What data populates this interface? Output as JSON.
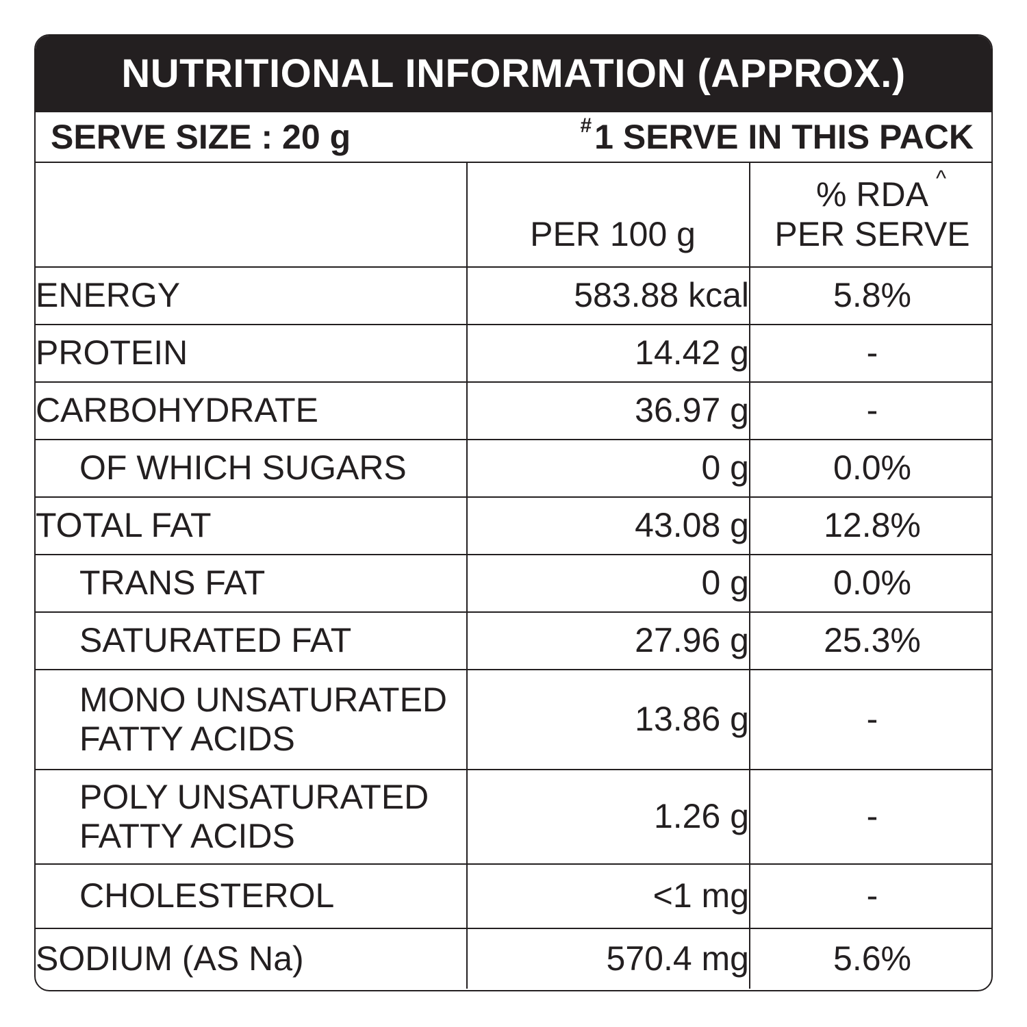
{
  "title": "NUTRITIONAL INFORMATION (APPROX.)",
  "serve": {
    "size_label": "SERVE SIZE : 20 g",
    "hash": "#",
    "count_label": "1 SERVE IN THIS PACK"
  },
  "columns": {
    "per100": "PER 100 g",
    "rda_line1": "% RDA",
    "rda_caret": "^",
    "rda_line2": "PER SERVE"
  },
  "rows": [
    {
      "name": "ENERGY",
      "value": "583.88 kcal",
      "rda": "5.8%"
    },
    {
      "name": "PROTEIN",
      "value": "14.42 g",
      "rda": "-"
    },
    {
      "name": "CARBOHYDRATE",
      "value": "36.97 g",
      "rda": "-"
    },
    {
      "name": "OF WHICH SUGARS",
      "value": "0 g",
      "rda": "0.0%"
    },
    {
      "name": "TOTAL FAT",
      "value": "43.08 g",
      "rda": "12.8%"
    },
    {
      "name": "TRANS FAT",
      "value": "0 g",
      "rda": "0.0%"
    },
    {
      "name": "SATURATED FAT",
      "value": "27.96 g",
      "rda": "25.3%"
    },
    {
      "name_line1": "MONO UNSATURATED",
      "name_line2": "FATTY ACIDS",
      "value": "13.86 g",
      "rda": "-"
    },
    {
      "name_line1": "POLY UNSATURATED",
      "name_line2": "FATTY ACIDS",
      "value": "1.26 g",
      "rda": "-"
    },
    {
      "name": "CHOLESTEROL",
      "value": "<1 mg",
      "rda": "-"
    },
    {
      "name": "SODIUM (AS Na)",
      "value": "570.4 mg",
      "rda": "5.6%"
    }
  ]
}
